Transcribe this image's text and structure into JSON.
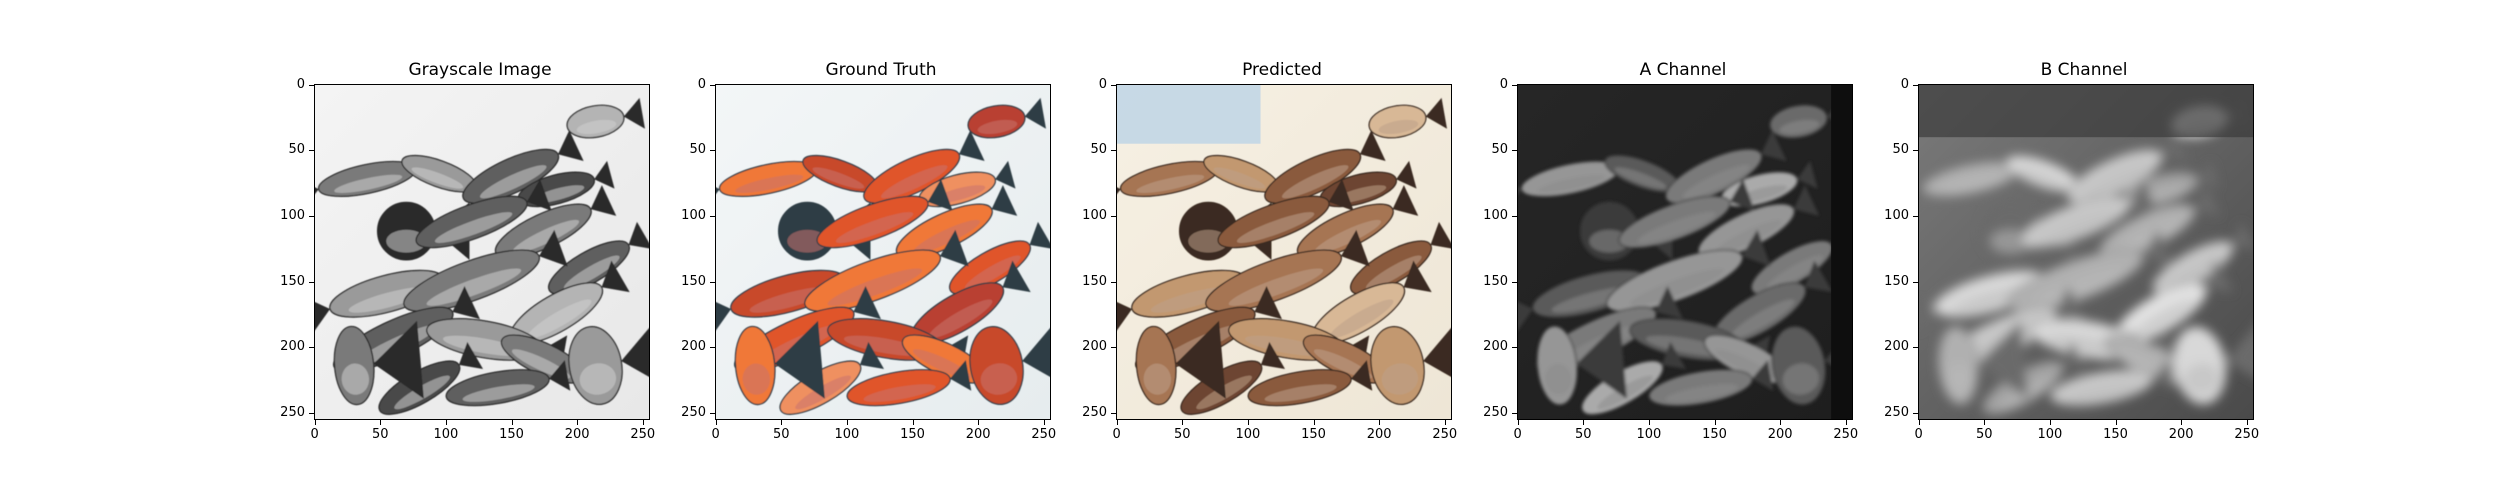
{
  "figure": {
    "panels": [
      {
        "title": "Grayscale Image",
        "style": "gray"
      },
      {
        "title": "Ground Truth",
        "style": "truth"
      },
      {
        "title": "Predicted",
        "style": "pred"
      },
      {
        "title": "A Channel",
        "style": "achan"
      },
      {
        "title": "B Channel",
        "style": "bchan"
      }
    ],
    "axes": {
      "y_ticks": [
        "0",
        "50",
        "100",
        "150",
        "200",
        "250"
      ],
      "x_ticks": [
        "0",
        "50",
        "100",
        "150",
        "200",
        "250"
      ],
      "range": [
        0,
        255
      ]
    }
  }
}
